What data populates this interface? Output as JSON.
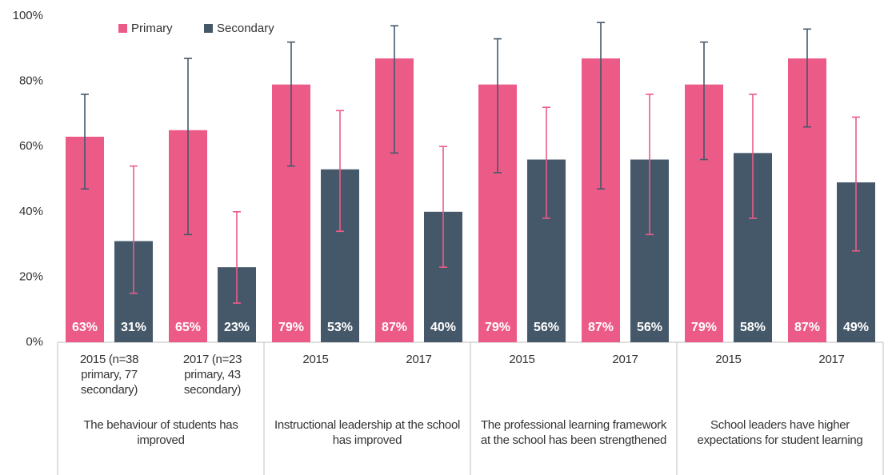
{
  "chart_data": {
    "type": "bar",
    "categories": [
      "2015 (n=38 primary, 77 secondary)",
      "2017 (n=23 primary, 43 secondary)",
      "2015",
      "2017",
      "2015",
      "2017",
      "2015",
      "2017"
    ],
    "group_labels": [
      "The behaviour of students has improved",
      "Instructional leadership at the school has improved",
      "The professional learning framework at the school has been strengthened",
      "School leaders have higher expectations for student learning"
    ],
    "series": [
      {
        "name": "Primary",
        "color": "#ec5b88",
        "error_color": "#45586a",
        "values": [
          63,
          65,
          79,
          87,
          79,
          87,
          79,
          87
        ],
        "value_labels": [
          "63%",
          "65%",
          "79%",
          "87%",
          "79%",
          "87%",
          "79%",
          "87%"
        ],
        "ci_low": [
          47,
          33,
          54,
          58,
          52,
          47,
          56,
          66
        ],
        "ci_high": [
          76,
          87,
          92,
          97,
          93,
          98,
          92,
          96
        ]
      },
      {
        "name": "Secondary",
        "color": "#45586a",
        "error_color": "#ec5b88",
        "values": [
          31,
          23,
          53,
          40,
          56,
          56,
          58,
          49
        ],
        "value_labels": [
          "31%",
          "23%",
          "53%",
          "40%",
          "56%",
          "56%",
          "58%",
          "49%"
        ],
        "ci_low": [
          15,
          12,
          34,
          23,
          38,
          33,
          38,
          28
        ],
        "ci_high": [
          54,
          40,
          71,
          60,
          72,
          76,
          76,
          69
        ]
      }
    ],
    "ylim": [
      0,
      100
    ],
    "yticks": [
      {
        "value": 0,
        "label": "0%"
      },
      {
        "value": 20,
        "label": "20%"
      },
      {
        "value": 40,
        "label": "40%"
      },
      {
        "value": 60,
        "label": "60%"
      },
      {
        "value": 80,
        "label": "80%"
      },
      {
        "value": 100,
        "label": "100%"
      }
    ],
    "legend": "top-left"
  }
}
